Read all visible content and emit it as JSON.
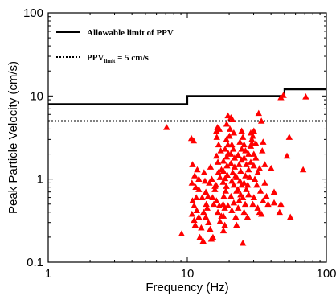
{
  "chart_data": {
    "type": "scatter",
    "xlabel": "Frequency (Hz)",
    "ylabel": "Peak Particle Velocity (cm/s)",
    "xscale": "log",
    "yscale": "log",
    "xlim": [
      1,
      100
    ],
    "ylim": [
      0.1,
      100
    ],
    "x_ticks": [
      1,
      10,
      100
    ],
    "x_tick_labels": [
      "1",
      "10",
      "100"
    ],
    "y_ticks": [
      0.1,
      1,
      10,
      100
    ],
    "y_tick_labels": [
      "0.1",
      "1",
      "10",
      "100"
    ],
    "grid": false,
    "legend_position": "top-left",
    "legend": {
      "allowable_label": "Allowable limit of PPV",
      "limit_label_prefix": "PPV",
      "limit_label_subscript": "limit",
      "limit_label_suffix": " = 5 cm/s"
    },
    "allowable_limit": {
      "steps": [
        {
          "x_from": 1,
          "x_to": 10,
          "y": 8
        },
        {
          "x_from": 10,
          "x_to": 50,
          "y": 10
        },
        {
          "x_from": 50,
          "x_to": 100,
          "y": 12
        }
      ],
      "color": "#000000"
    },
    "ppv_limit": {
      "y": 5,
      "color": "#000000"
    },
    "marker_color": "#ff0000",
    "points": [
      [
        7.1,
        4.2
      ],
      [
        9.1,
        0.22
      ],
      [
        10.7,
        3.1
      ],
      [
        11.1,
        2.9
      ],
      [
        10.9,
        1.5
      ],
      [
        11.8,
        1.3
      ],
      [
        11.3,
        1.1
      ],
      [
        10.8,
        0.9
      ],
      [
        11.5,
        0.8
      ],
      [
        11.6,
        0.6
      ],
      [
        10.9,
        0.55
      ],
      [
        11.2,
        0.48
      ],
      [
        11.7,
        0.42
      ],
      [
        10.8,
        0.38
      ],
      [
        12.1,
        0.35
      ],
      [
        11.2,
        0.32
      ],
      [
        11.4,
        0.28
      ],
      [
        12.6,
        0.26
      ],
      [
        12.3,
        0.2
      ],
      [
        13.0,
        0.18
      ],
      [
        13.2,
        1.2
      ],
      [
        13.4,
        0.95
      ],
      [
        13.6,
        0.7
      ],
      [
        12.8,
        0.6
      ],
      [
        13.7,
        0.5
      ],
      [
        13.9,
        0.45
      ],
      [
        13.1,
        0.4
      ],
      [
        13.6,
        0.35
      ],
      [
        14.2,
        0.3
      ],
      [
        14.6,
        0.25
      ],
      [
        14.9,
        0.19
      ],
      [
        15.3,
        0.2
      ],
      [
        15.2,
        0.6
      ],
      [
        15.5,
        0.5
      ],
      [
        14.4,
        0.9
      ],
      [
        15.0,
        1.0
      ],
      [
        15.8,
        0.82
      ],
      [
        14.7,
        1.4
      ],
      [
        16.2,
        3.8
      ],
      [
        16.5,
        4.2
      ],
      [
        17.0,
        4.0
      ],
      [
        16.3,
        3.2
      ],
      [
        16.8,
        2.6
      ],
      [
        17.4,
        2.2
      ],
      [
        16.2,
        1.9
      ],
      [
        16.6,
        1.6
      ],
      [
        17.6,
        1.3
      ],
      [
        16.7,
        1.2
      ],
      [
        17.2,
        1.05
      ],
      [
        15.8,
        0.75
      ],
      [
        16.2,
        0.55
      ],
      [
        17.0,
        0.48
      ],
      [
        16.6,
        0.4
      ],
      [
        17.6,
        0.36
      ],
      [
        17.2,
        0.31
      ],
      [
        18.6,
        0.28
      ],
      [
        18.2,
        0.24
      ],
      [
        18.6,
        0.45
      ],
      [
        18.1,
        0.5
      ],
      [
        18.3,
        0.62
      ],
      [
        18.9,
        0.72
      ],
      [
        19.1,
        0.82
      ],
      [
        18.1,
        0.92
      ],
      [
        18.7,
        1.02
      ],
      [
        19.4,
        1.12
      ],
      [
        18.2,
        1.25
      ],
      [
        19.3,
        1.45
      ],
      [
        18.2,
        1.65
      ],
      [
        19.2,
        1.85
      ],
      [
        19.7,
        2.05
      ],
      [
        18.7,
        2.3
      ],
      [
        19.6,
        2.6
      ],
      [
        19.1,
        3.0
      ],
      [
        20.1,
        3.3
      ],
      [
        19.6,
        5.8
      ],
      [
        20.6,
        5.5
      ],
      [
        21.1,
        5.2
      ],
      [
        19.2,
        4.6
      ],
      [
        20.3,
        4.0
      ],
      [
        21.6,
        3.6
      ],
      [
        20.9,
        2.6
      ],
      [
        21.4,
        2.3
      ],
      [
        20.6,
        2.0
      ],
      [
        21.9,
        1.8
      ],
      [
        20.6,
        1.55
      ],
      [
        21.9,
        1.4
      ],
      [
        21.2,
        1.2
      ],
      [
        22.3,
        1.1
      ],
      [
        20.9,
        0.95
      ],
      [
        21.6,
        0.85
      ],
      [
        22.6,
        0.72
      ],
      [
        20.6,
        0.62
      ],
      [
        21.6,
        0.52
      ],
      [
        20.9,
        0.42
      ],
      [
        22.3,
        0.35
      ],
      [
        22.6,
        0.28
      ],
      [
        23.2,
        0.45
      ],
      [
        23.6,
        0.55
      ],
      [
        24.2,
        0.65
      ],
      [
        23.1,
        0.75
      ],
      [
        24.6,
        0.85
      ],
      [
        23.9,
        0.95
      ],
      [
        22.6,
        1.05
      ],
      [
        24.2,
        1.25
      ],
      [
        23.6,
        1.5
      ],
      [
        24.6,
        1.7
      ],
      [
        23.2,
        1.95
      ],
      [
        24.6,
        2.3
      ],
      [
        23.9,
        2.8
      ],
      [
        25.1,
        3.2
      ],
      [
        24.6,
        3.8
      ],
      [
        25.6,
        2.6
      ],
      [
        26.2,
        2.2
      ],
      [
        25.6,
        1.8
      ],
      [
        26.6,
        1.5
      ],
      [
        26.2,
        1.1
      ],
      [
        25.6,
        0.9
      ],
      [
        26.6,
        0.75
      ],
      [
        25.1,
        0.6
      ],
      [
        26.1,
        0.5
      ],
      [
        25.6,
        0.4
      ],
      [
        27.1,
        0.35
      ],
      [
        27.6,
        0.65
      ],
      [
        27.2,
        0.85
      ],
      [
        28.1,
        1.05
      ],
      [
        27.6,
        1.3
      ],
      [
        28.6,
        1.6
      ],
      [
        27.6,
        2.0
      ],
      [
        28.6,
        2.5
      ],
      [
        29.1,
        2.7
      ],
      [
        29.6,
        3.3
      ],
      [
        28.6,
        3.6
      ],
      [
        30.1,
        3.8
      ],
      [
        29.1,
        3.0
      ],
      [
        31.1,
        2.7
      ],
      [
        30.1,
        2.0
      ],
      [
        31.1,
        1.8
      ],
      [
        30.1,
        1.45
      ],
      [
        32.1,
        1.2
      ],
      [
        30.6,
        1.0
      ],
      [
        31.6,
        0.85
      ],
      [
        30.1,
        0.6
      ],
      [
        29.6,
        0.5
      ],
      [
        32.1,
        0.45
      ],
      [
        33.1,
        0.4
      ],
      [
        34.1,
        0.38
      ],
      [
        32.6,
        6.2
      ],
      [
        34.1,
        5.0
      ],
      [
        35.1,
        2.8
      ],
      [
        34.6,
        2.2
      ],
      [
        36.1,
        1.5
      ],
      [
        33.1,
        1.35
      ],
      [
        36.1,
        0.9
      ],
      [
        33.6,
        0.72
      ],
      [
        37.1,
        0.62
      ],
      [
        35.1,
        0.55
      ],
      [
        38.1,
        0.5
      ],
      [
        25.1,
        0.17
      ],
      [
        40.1,
        1.35
      ],
      [
        42.1,
        0.7
      ],
      [
        42.1,
        0.52
      ],
      [
        47.1,
        0.5
      ],
      [
        46.1,
        0.4
      ],
      [
        47.1,
        9.6
      ],
      [
        49.1,
        10.2
      ],
      [
        52.1,
        1.9
      ],
      [
        54.1,
        3.2
      ],
      [
        55.1,
        0.35
      ],
      [
        68.1,
        1.3
      ],
      [
        71.1,
        9.8
      ],
      [
        12.1,
        1.0
      ],
      [
        14.1,
        0.62
      ],
      [
        18.2,
        0.36
      ],
      [
        12.1,
        0.75
      ],
      [
        16.1,
        0.85
      ],
      [
        19.6,
        0.48
      ]
    ]
  }
}
